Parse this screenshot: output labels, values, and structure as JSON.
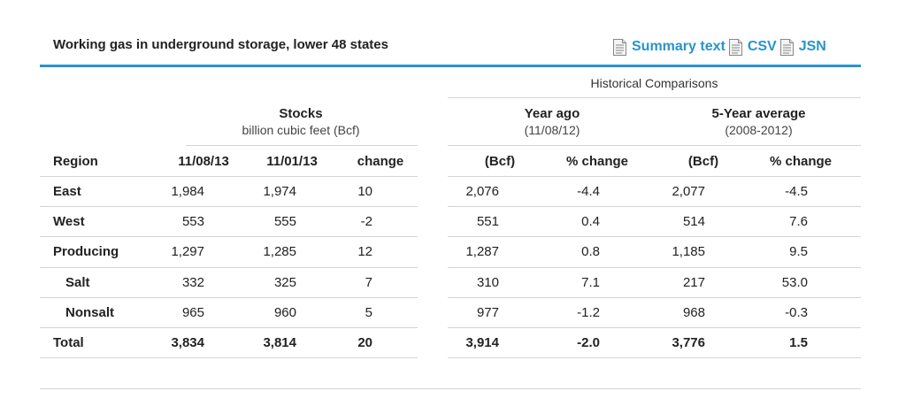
{
  "title": "Working gas in underground storage, lower 48 states",
  "links": [
    {
      "label": "Summary text",
      "icon": "document-icon"
    },
    {
      "label": "CSV",
      "icon": "document-icon"
    },
    {
      "label": "JSN",
      "icon": "document-icon"
    }
  ],
  "colors": {
    "accent": "#2a93c9",
    "rule": "#d4d4d4"
  },
  "table": {
    "historical_label": "Historical Comparisons",
    "stocks": {
      "title": "Stocks",
      "subtitle": "billion cubic feet (Bcf)"
    },
    "year_ago": {
      "title": "Year ago",
      "subtitle": "(11/08/12)"
    },
    "five_year": {
      "title": "5-Year average",
      "subtitle": "(2008-2012)"
    },
    "headers": [
      "Region",
      "11/08/13",
      "11/01/13",
      "change",
      "(Bcf)",
      "% change",
      "(Bcf)",
      "% change"
    ],
    "rows": [
      {
        "region": "East",
        "v": [
          "1,984",
          "1,974",
          "10",
          "2,076",
          "-4.4",
          "2,077",
          "-4.5"
        ]
      },
      {
        "region": "West",
        "v": [
          "553",
          "555",
          "-2",
          "551",
          "0.4",
          "514",
          "7.6"
        ]
      },
      {
        "region": "Producing",
        "v": [
          "1,297",
          "1,285",
          "12",
          "1,287",
          "0.8",
          "1,185",
          "9.5"
        ]
      },
      {
        "region": "Salt",
        "v": [
          "332",
          "325",
          "7",
          "310",
          "7.1",
          "217",
          "53.0"
        ]
      },
      {
        "region": "Nonsalt",
        "v": [
          "965",
          "960",
          "5",
          "977",
          "-1.2",
          "968",
          "-0.3"
        ]
      },
      {
        "region": "Total",
        "v": [
          "3,834",
          "3,814",
          "20",
          "3,914",
          "-2.0",
          "3,776",
          "1.5"
        ]
      }
    ]
  }
}
